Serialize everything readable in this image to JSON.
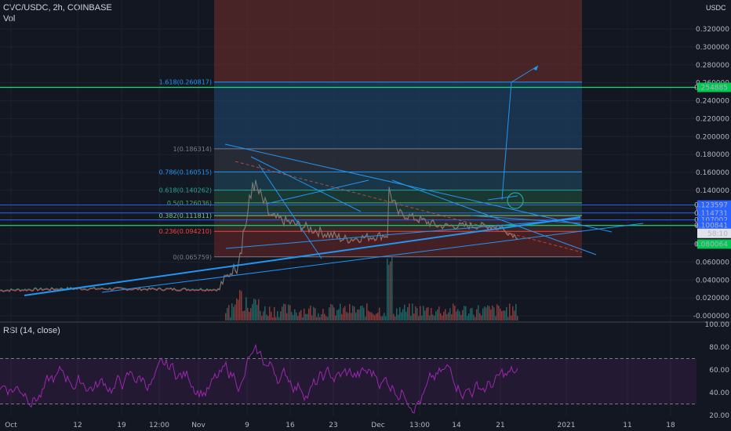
{
  "header": {
    "symbol": "CVC/USDC, 2h, COINBASE",
    "volume_label": "Vol",
    "currency": "USDC",
    "rsi_label": "RSI (14, close)"
  },
  "colors": {
    "background": "#131722",
    "grid": "#1e222d",
    "candle_up": "#26a69a",
    "candle_down": "#ef5350",
    "trendline": "#2196f3",
    "hline_blue": "#2962ff",
    "hline_green": "#00e676",
    "rsi": "#9c27b0",
    "fib_top_zone": "#5c2a2a",
    "fib_blue_zone": "#1b3b5a",
    "fib_bottom_zone": "#4a2024"
  },
  "chart_data": {
    "type": "candlestick",
    "y_axis": {
      "ticks": [
        "0.320000",
        "0.300000",
        "0.280000",
        "0.260000",
        "0.240000",
        "0.220000",
        "0.200000",
        "0.180000",
        "0.160000",
        "0.140000",
        "0.120000",
        "0.100000",
        "0.080000",
        "0.060000",
        "0.040000",
        "0.020000",
        "-0.000000"
      ],
      "tick_values": [
        0.32,
        0.3,
        0.28,
        0.26,
        0.24,
        0.22,
        0.2,
        0.18,
        0.16,
        0.14,
        0.12,
        0.1,
        0.08,
        0.06,
        0.04,
        0.02,
        0.0
      ],
      "range": [
        -0.005,
        0.34
      ]
    },
    "x_axis": {
      "labels": [
        "Oct",
        "12",
        "19",
        "12:00",
        "Nov",
        "9",
        "16",
        "23",
        "Dec",
        "13:00",
        "14",
        "21",
        "2021",
        "11",
        "18"
      ]
    },
    "fib_levels": [
      {
        "label": "1.618(0.260817)",
        "value": 0.260817,
        "color": "#2196f3"
      },
      {
        "label": "1(0.186314)",
        "value": 0.186314,
        "color": "#787b86"
      },
      {
        "label": "0.786(0.160515)",
        "value": 0.160515,
        "color": "#2196f3"
      },
      {
        "label": "0.618(0.140262)",
        "value": 0.140262,
        "color": "#26a69a"
      },
      {
        "label": "0.5(0.126036)",
        "value": 0.126036,
        "color": "#4caf50"
      },
      {
        "label": "0.382(0.111811)",
        "value": 0.111811,
        "color": "#81c784"
      },
      {
        "label": "0.236(0.094210)",
        "value": 0.09421,
        "color": "#f44336"
      },
      {
        "label": "0(0.065759)",
        "value": 0.065759,
        "color": "#787b86"
      }
    ],
    "price_tags": [
      {
        "text": "0.254885",
        "value": 0.254885,
        "bg": "#00c853",
        "fg": "#000000"
      },
      {
        "text": "0.123597",
        "value": 0.123597,
        "bg": "#2962ff",
        "fg": "#ffffff"
      },
      {
        "text": "0.114731",
        "value": 0.114731,
        "bg": "#2962ff",
        "fg": "#ffffff"
      },
      {
        "text": "0.107002",
        "value": 0.107002,
        "bg": "#2962ff",
        "fg": "#ffffff"
      },
      {
        "text": "0.100841",
        "value": 0.100841,
        "bg": "#2962ff",
        "fg": "#ffffff"
      },
      {
        "text": "58:10",
        "value": 0.092,
        "bg": "#e0e3eb",
        "fg": "#131722"
      },
      {
        "text": "0.080064",
        "value": 0.080064,
        "bg": "#00c853",
        "fg": "#000000"
      }
    ],
    "rsi": {
      "ticks": [
        "100.00",
        "80.00",
        "60.00",
        "40.00",
        "20.00"
      ],
      "tick_values": [
        100,
        80,
        60,
        40,
        20
      ],
      "upper_band": 70,
      "lower_band": 30
    }
  }
}
